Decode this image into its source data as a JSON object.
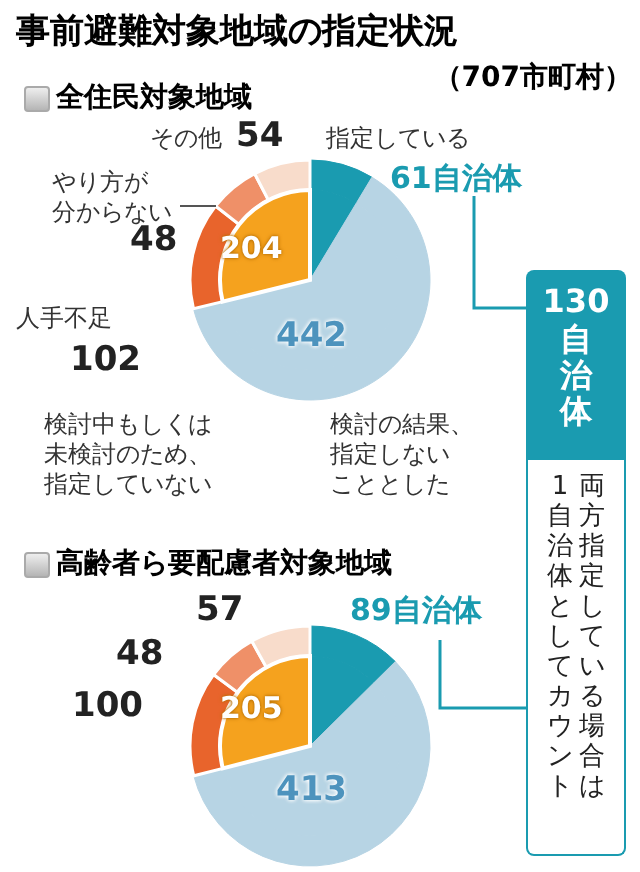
{
  "chart_data": [
    {
      "type": "pie",
      "title": "事前避難対象地域の指定状況",
      "subtitle": "全住民対象地域",
      "annotations": [
        "（707市町村）",
        "130自治体",
        "両方指定している場合は",
        "1自治体としてカウント",
        "検討中もしくは未検討のため、指定していない"
      ],
      "categories": [
        "指定している",
        "検討の結果、指定しないこととした",
        "人手不足",
        "やり方が分からない",
        "その他"
      ],
      "values": [
        61,
        442,
        102,
        48,
        54
      ],
      "colors": [
        "#1a9bb0",
        "#b7d4e4",
        "#e8642c",
        "#ef9068",
        "#f8dccb"
      ],
      "value_labels": [
        "61自治体",
        "442",
        "102",
        "48",
        "54"
      ],
      "series": [
        {
          "values": [
            61,
            442,
            204,
            null,
            null
          ],
          "colors": [
            "#1a9bb0",
            "#b7d4e4",
            "#f5a21e",
            null,
            null
          ],
          "value_labels": [
            null,
            null,
            "204",
            null,
            null
          ]
        }
      ]
    },
    {
      "type": "pie",
      "subtitle": "高齢者ら要配慮者対象地域",
      "categories": [
        null,
        null,
        null,
        null,
        null
      ],
      "values": [
        89,
        413,
        100,
        48,
        57
      ],
      "colors": [
        "#1a9bb0",
        "#b7d4e4",
        "#e8642c",
        "#ef9068",
        "#f8dccb"
      ],
      "value_labels": [
        "89自治体",
        "413",
        "100",
        "48",
        "57"
      ],
      "series": [
        {
          "values": [
            89,
            413,
            205,
            null,
            null
          ],
          "colors": [
            "#1a9bb0",
            "#b7d4e4",
            "#f5a21e",
            null,
            null
          ],
          "value_labels": [
            null,
            null,
            "205",
            null,
            null
          ]
        }
      ]
    }
  ]
}
